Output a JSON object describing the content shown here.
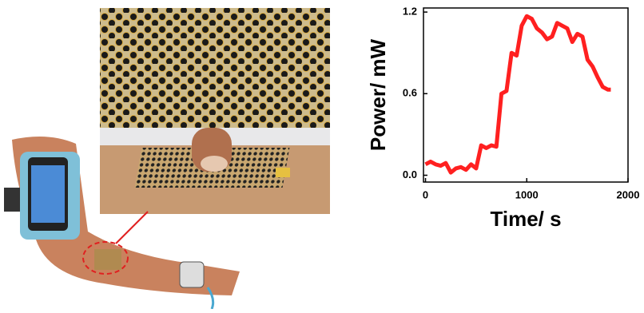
{
  "chart_data": {
    "type": "line",
    "xlabel": "Time/ s",
    "ylabel": "Power/ mW",
    "x": [
      0,
      50,
      100,
      150,
      200,
      250,
      300,
      350,
      400,
      450,
      500,
      550,
      600,
      650,
      700,
      750,
      800,
      850,
      900,
      950,
      1000,
      1050,
      1100,
      1150,
      1200,
      1250,
      1300,
      1350,
      1400,
      1450,
      1500,
      1550,
      1600,
      1650,
      1700,
      1750,
      1800,
      1830
    ],
    "values": [
      0.08,
      0.1,
      0.08,
      0.07,
      0.09,
      0.02,
      0.05,
      0.06,
      0.04,
      0.08,
      0.05,
      0.22,
      0.2,
      0.22,
      0.21,
      0.6,
      0.62,
      0.9,
      0.88,
      1.1,
      1.17,
      1.15,
      1.08,
      1.05,
      1.0,
      1.02,
      1.12,
      1.1,
      1.08,
      0.98,
      1.04,
      1.02,
      0.85,
      0.8,
      0.72,
      0.65,
      0.63,
      0.63
    ],
    "color": "#ff2020",
    "xlim": [
      -20,
      2000
    ],
    "xticks": [
      0,
      1000,
      2000
    ],
    "ylim": [
      -0.05,
      1.23
    ],
    "yticks": [
      {
        "value": 0,
        "label": "0.0"
      },
      0.6,
      1.2
    ]
  }
}
